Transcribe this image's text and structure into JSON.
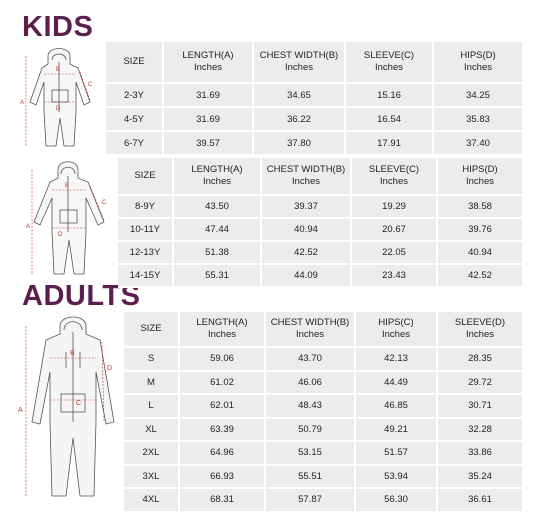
{
  "headings": {
    "kids": "KIDS",
    "adults": "ADULTS"
  },
  "accent_color": "#5b1f4e",
  "figures": {
    "kids_small": {
      "labels": [
        "A",
        "B",
        "C",
        "D"
      ]
    },
    "kids_large": {
      "labels": [
        "A",
        "B",
        "C",
        "D"
      ]
    },
    "adult": {
      "labels": [
        "A",
        "B",
        "C",
        "D"
      ]
    }
  },
  "tables": {
    "kids_small": {
      "headers": [
        {
          "title": "SIZE",
          "unit": ""
        },
        {
          "title": "LENGTH(A)",
          "unit": "Inches"
        },
        {
          "title": "CHEST WIDTH(B)",
          "unit": "Inches"
        },
        {
          "title": "SLEEVE(C)",
          "unit": "Inches"
        },
        {
          "title": "HIPS(D)",
          "unit": "Inches"
        }
      ],
      "rows": [
        [
          "2-3Y",
          "31.69",
          "34.65",
          "15.16",
          "34.25"
        ],
        [
          "4-5Y",
          "31.69",
          "36.22",
          "16.54",
          "35.83"
        ],
        [
          "6-7Y",
          "39.57",
          "37.80",
          "17.91",
          "37.40"
        ]
      ]
    },
    "kids_large": {
      "headers": [
        {
          "title": "SIZE",
          "unit": ""
        },
        {
          "title": "LENGTH(A)",
          "unit": "Inches"
        },
        {
          "title": "CHEST WIDTH(B)",
          "unit": "Inches"
        },
        {
          "title": "SLEEVE(C)",
          "unit": "Inches"
        },
        {
          "title": "HIPS(D)",
          "unit": "Inches"
        }
      ],
      "rows": [
        [
          "8-9Y",
          "43.50",
          "39.37",
          "19.29",
          "38.58"
        ],
        [
          "10-11Y",
          "47.44",
          "40.94",
          "20.67",
          "39.76"
        ],
        [
          "12-13Y",
          "51.38",
          "42.52",
          "22.05",
          "40.94"
        ],
        [
          "14-15Y",
          "55.31",
          "44.09",
          "23.43",
          "42.52"
        ]
      ]
    },
    "adults": {
      "headers": [
        {
          "title": "SIZE",
          "unit": ""
        },
        {
          "title": "LENGTH(A)",
          "unit": "Inches"
        },
        {
          "title": "CHEST WIDTH(B)",
          "unit": "Inches"
        },
        {
          "title": "HIPS(C)",
          "unit": "Inches"
        },
        {
          "title": "SLEEVE(D)",
          "unit": "Inches"
        }
      ],
      "rows": [
        [
          "S",
          "59.06",
          "43.70",
          "42.13",
          "28.35"
        ],
        [
          "M",
          "61.02",
          "46.06",
          "44.49",
          "29.72"
        ],
        [
          "L",
          "62.01",
          "48.43",
          "46.85",
          "30.71"
        ],
        [
          "XL",
          "63.39",
          "50.79",
          "49.21",
          "32.28"
        ],
        [
          "2XL",
          "64.96",
          "53.15",
          "51.57",
          "33.86"
        ],
        [
          "3XL",
          "66.93",
          "55.51",
          "53.94",
          "35.24"
        ],
        [
          "4XL",
          "68.31",
          "57.87",
          "56.30",
          "36.61"
        ]
      ]
    }
  }
}
